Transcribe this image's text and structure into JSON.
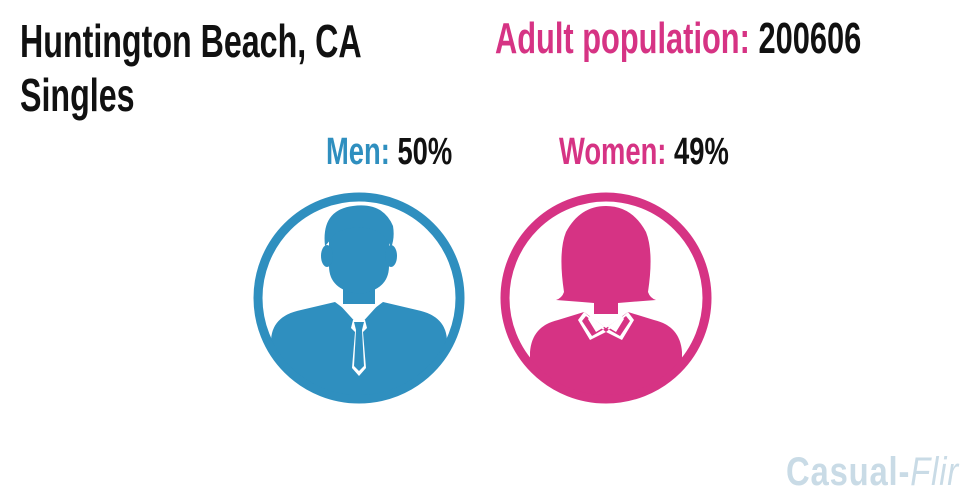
{
  "title": {
    "line1": "Huntington Beach, CA",
    "line2": "Singles"
  },
  "population": {
    "label": "Adult population:",
    "value": "200606"
  },
  "chart_data": {
    "type": "pictogram",
    "title": "Huntington Beach, CA Singles",
    "series": [
      {
        "name": "Men",
        "label": "Men:",
        "value": 50,
        "display": "50%",
        "color": "#2f8fbf"
      },
      {
        "name": "Women",
        "label": "Women:",
        "value": 49,
        "display": "49%",
        "color": "#d63384"
      }
    ]
  },
  "icons": {
    "men": "man-avatar-icon",
    "women": "woman-avatar-icon"
  },
  "watermark": {
    "part1": "Casual",
    "dash": "-",
    "part2": "Flirt"
  }
}
